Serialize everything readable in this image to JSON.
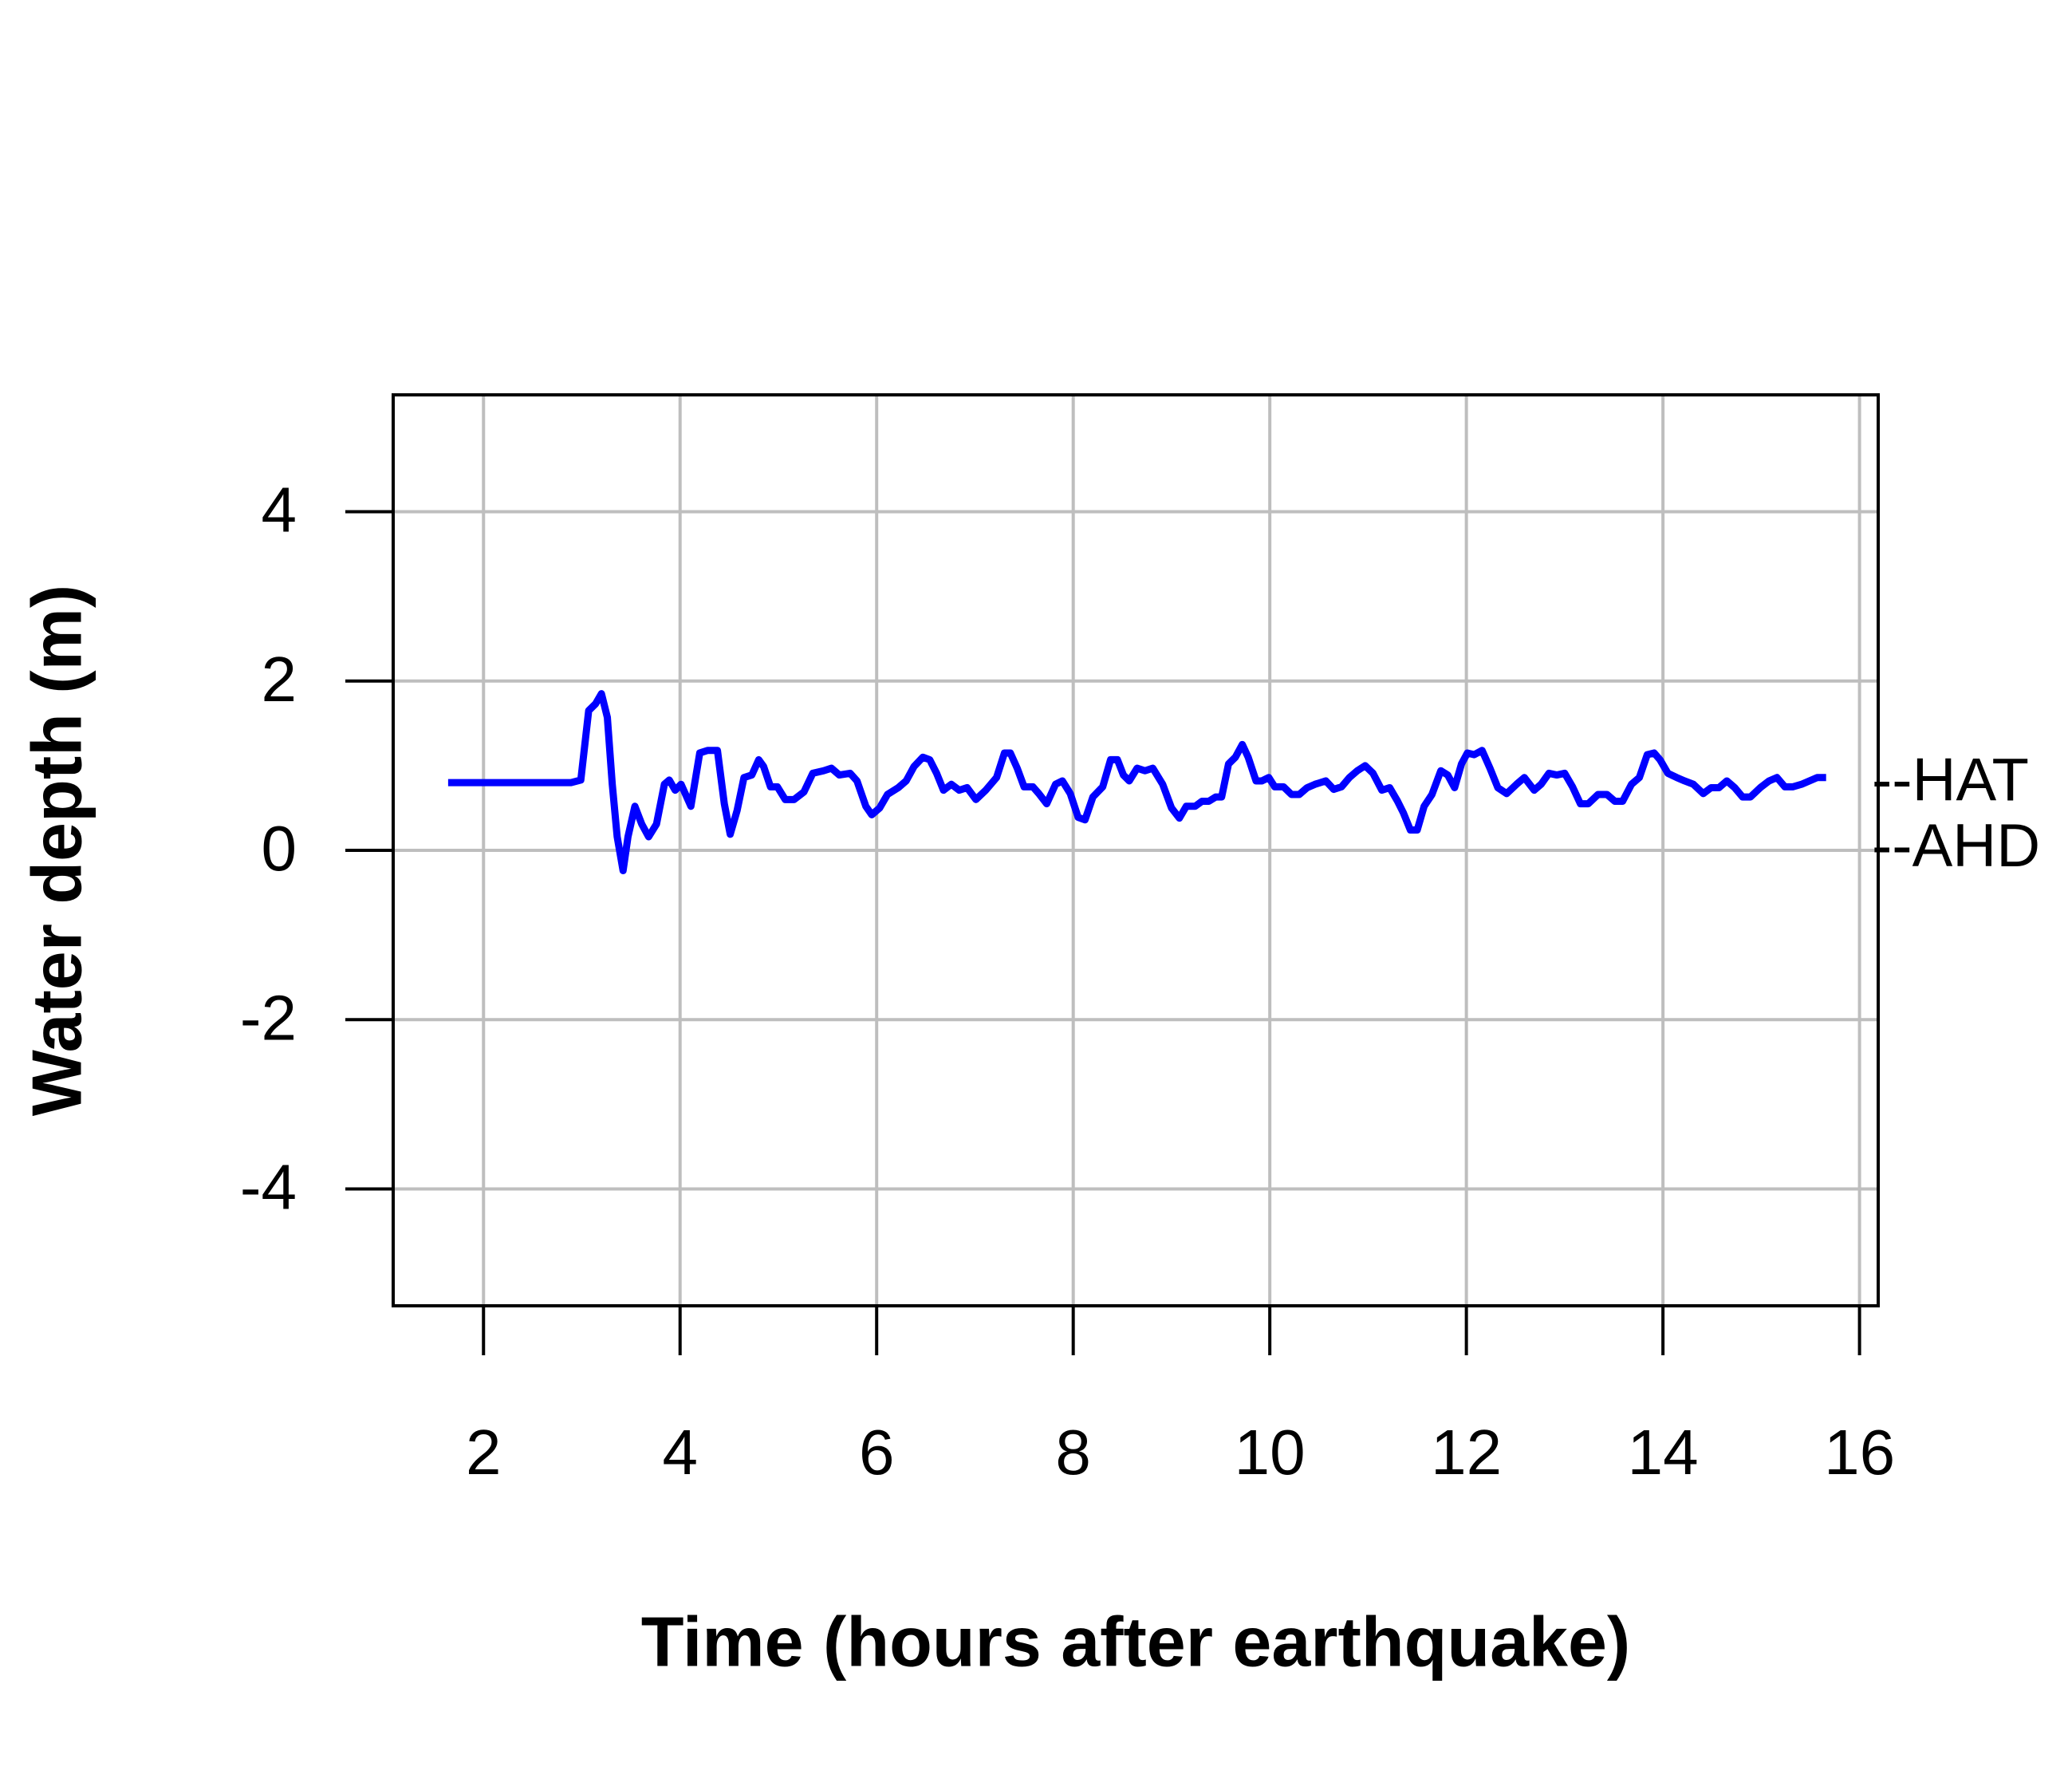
{
  "chart_data": {
    "type": "line",
    "xlabel": "Time (hours after earthquake)",
    "ylabel": "Water depth (m)",
    "xlim": [
      1.081,
      16.19
    ],
    "ylim": [
      -5.38,
      5.38
    ],
    "xticks": [
      2,
      4,
      6,
      8,
      10,
      12,
      14,
      16
    ],
    "yticks": [
      -4,
      -2,
      0,
      2,
      4
    ],
    "grid": true,
    "annotations": [
      {
        "label": "--HAT",
        "y": 0.78
      },
      {
        "label": "--AHD",
        "y": 0
      }
    ],
    "series": [
      {
        "color": "#0000ff",
        "x": [
          1.64,
          2.89,
          2.99,
          3.07,
          3.14,
          3.2,
          3.26,
          3.31,
          3.36,
          3.42,
          3.47,
          3.54,
          3.61,
          3.68,
          3.76,
          3.84,
          3.89,
          3.95,
          4.01,
          4.11,
          4.2,
          4.28,
          4.38,
          4.45,
          4.51,
          4.58,
          4.65,
          4.73,
          4.8,
          4.85,
          4.92,
          4.99,
          5.07,
          5.16,
          5.26,
          5.35,
          5.46,
          5.54,
          5.62,
          5.73,
          5.8,
          5.89,
          5.95,
          6.03,
          6.11,
          6.22,
          6.3,
          6.38,
          6.47,
          6.54,
          6.61,
          6.68,
          6.76,
          6.84,
          6.92,
          7.01,
          7.11,
          7.22,
          7.3,
          7.36,
          7.43,
          7.5,
          7.59,
          7.65,
          7.73,
          7.82,
          7.89,
          7.97,
          8.05,
          8.12,
          8.2,
          8.3,
          8.38,
          8.45,
          8.51,
          8.57,
          8.65,
          8.73,
          8.81,
          8.91,
          9.0,
          9.08,
          9.15,
          9.24,
          9.31,
          9.38,
          9.45,
          9.51,
          9.58,
          9.65,
          9.72,
          9.78,
          9.86,
          9.92,
          9.99,
          10.05,
          10.14,
          10.22,
          10.3,
          10.38,
          10.46,
          10.57,
          10.65,
          10.73,
          10.81,
          10.89,
          10.97,
          11.05,
          11.14,
          11.22,
          11.3,
          11.36,
          11.43,
          11.5,
          11.57,
          11.65,
          11.74,
          11.81,
          11.88,
          11.95,
          12.01,
          12.08,
          12.16,
          12.24,
          12.32,
          12.41,
          12.51,
          12.59,
          12.69,
          12.76,
          12.84,
          12.92,
          13.0,
          13.08,
          13.16,
          13.24,
          13.34,
          13.43,
          13.51,
          13.59,
          13.68,
          13.76,
          13.84,
          13.91,
          13.97,
          14.05,
          14.14,
          14.22,
          14.31,
          14.41,
          14.49,
          14.57,
          14.65,
          14.73,
          14.81,
          14.89,
          14.99,
          15.08,
          15.16,
          15.24,
          15.32,
          15.41,
          15.49,
          15.57,
          15.66
        ],
        "values": [
          0.8,
          0.8,
          0.83,
          1.65,
          1.73,
          1.85,
          1.57,
          0.78,
          0.16,
          -0.24,
          0.16,
          0.52,
          0.31,
          0.16,
          0.31,
          0.78,
          0.83,
          0.71,
          0.78,
          0.52,
          1.15,
          1.18,
          1.18,
          0.55,
          0.19,
          0.47,
          0.86,
          0.89,
          1.07,
          0.99,
          0.75,
          0.75,
          0.6,
          0.6,
          0.69,
          0.91,
          0.94,
          0.97,
          0.89,
          0.91,
          0.82,
          0.52,
          0.42,
          0.5,
          0.66,
          0.74,
          0.82,
          0.99,
          1.1,
          1.07,
          0.91,
          0.71,
          0.78,
          0.71,
          0.74,
          0.6,
          0.71,
          0.86,
          1.15,
          1.15,
          0.97,
          0.75,
          0.75,
          0.67,
          0.55,
          0.78,
          0.82,
          0.67,
          0.39,
          0.36,
          0.63,
          0.75,
          1.07,
          1.07,
          0.89,
          0.82,
          0.97,
          0.94,
          0.97,
          0.78,
          0.5,
          0.38,
          0.52,
          0.52,
          0.58,
          0.58,
          0.63,
          0.63,
          1.02,
          1.1,
          1.25,
          1.1,
          0.82,
          0.82,
          0.86,
          0.75,
          0.75,
          0.66,
          0.66,
          0.74,
          0.78,
          0.82,
          0.72,
          0.75,
          0.86,
          0.94,
          1.0,
          0.91,
          0.71,
          0.74,
          0.58,
          0.44,
          0.24,
          0.24,
          0.52,
          0.66,
          0.94,
          0.89,
          0.74,
          1.02,
          1.15,
          1.13,
          1.18,
          0.97,
          0.74,
          0.67,
          0.78,
          0.86,
          0.71,
          0.78,
          0.91,
          0.89,
          0.91,
          0.75,
          0.55,
          0.55,
          0.66,
          0.66,
          0.58,
          0.58,
          0.78,
          0.86,
          1.13,
          1.15,
          1.07,
          0.91,
          0.86,
          0.82,
          0.78,
          0.67,
          0.74,
          0.74,
          0.82,
          0.74,
          0.63,
          0.63,
          0.74,
          0.82,
          0.86,
          0.75,
          0.75,
          0.78,
          0.82,
          0.86,
          0.86
        ]
      }
    ]
  }
}
